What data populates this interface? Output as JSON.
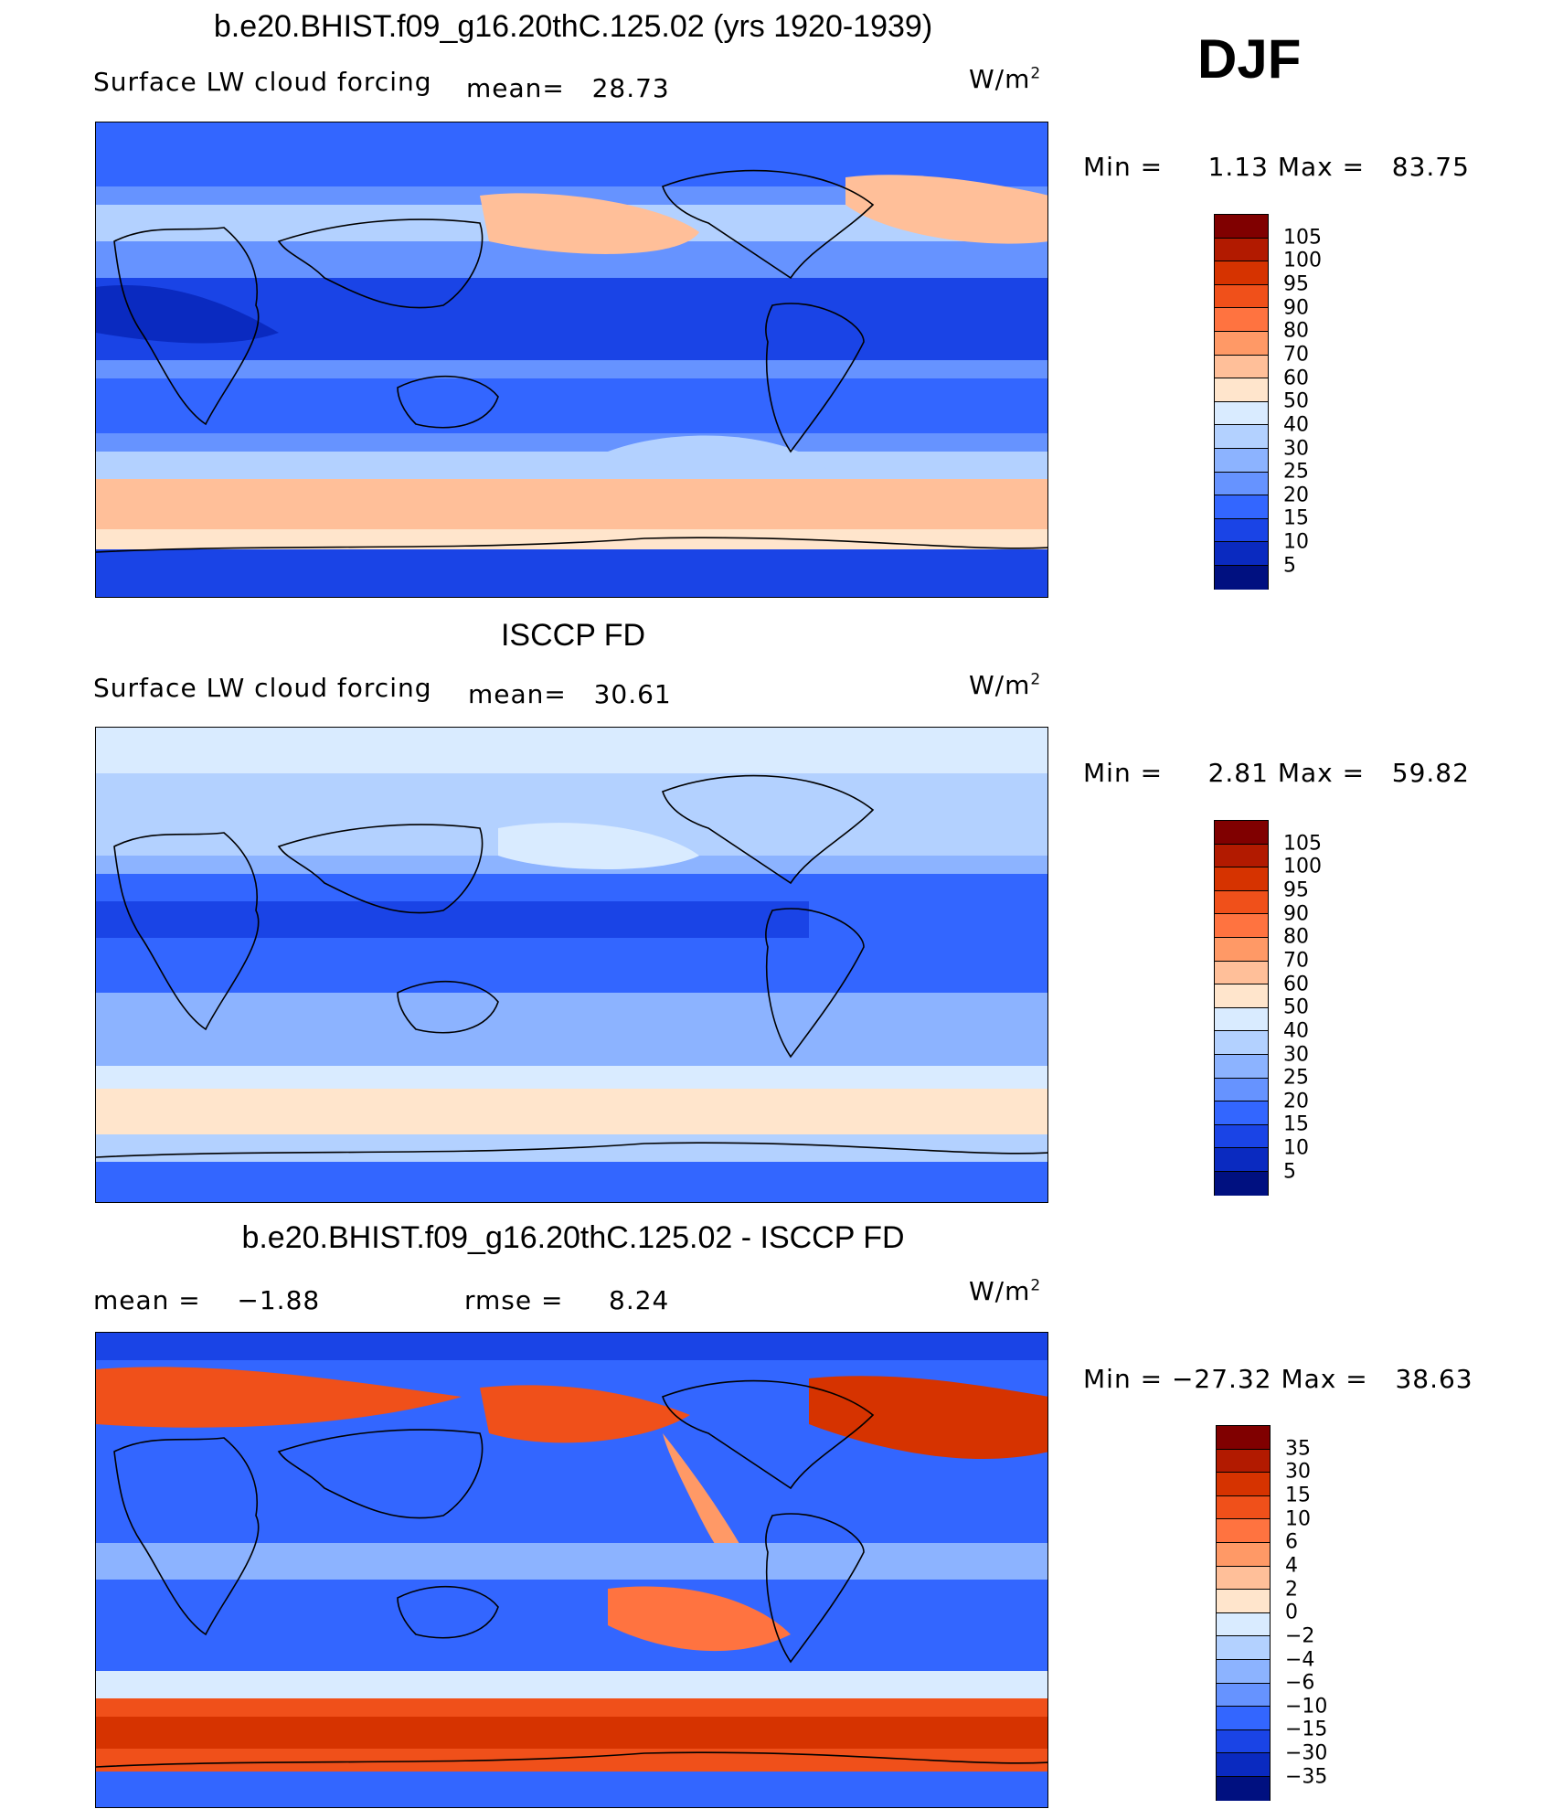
{
  "season": "DJF",
  "panels": [
    {
      "title": "b.e20.BHIST.f09_g16.20thC.125.02 (yrs 1920-1939)",
      "variable": "Surface LW cloud forcing",
      "mean_label": "mean=",
      "mean_value": "28.73",
      "units_base": "W/m",
      "units_exp": "2",
      "min_label": "Min =",
      "min_value": "1.13",
      "max_label": "Max =",
      "max_value": "83.75",
      "colorbar": {
        "levels": [
          "105",
          "100",
          "95",
          "90",
          "80",
          "70",
          "60",
          "50",
          "40",
          "30",
          "25",
          "20",
          "15",
          "10",
          "5"
        ],
        "colors": [
          "#800000",
          "#b21a00",
          "#d63300",
          "#f0501a",
          "#ff7340",
          "#ff9966",
          "#ffbf99",
          "#ffe5cc",
          "#d9ebff",
          "#b3d1ff",
          "#8cb3ff",
          "#6693ff",
          "#3366ff",
          "#1a44e6",
          "#0a2ac0",
          "#001080"
        ]
      }
    },
    {
      "title": "ISCCP FD",
      "variable": "Surface LW cloud forcing",
      "mean_label": "mean=",
      "mean_value": "30.61",
      "units_base": "W/m",
      "units_exp": "2",
      "min_label": "Min =",
      "min_value": "2.81",
      "max_label": "Max =",
      "max_value": "59.82",
      "colorbar": {
        "levels": [
          "105",
          "100",
          "95",
          "90",
          "80",
          "70",
          "60",
          "50",
          "40",
          "30",
          "25",
          "20",
          "15",
          "10",
          "5"
        ],
        "colors": [
          "#800000",
          "#b21a00",
          "#d63300",
          "#f0501a",
          "#ff7340",
          "#ff9966",
          "#ffbf99",
          "#ffe5cc",
          "#d9ebff",
          "#b3d1ff",
          "#8cb3ff",
          "#6693ff",
          "#3366ff",
          "#1a44e6",
          "#0a2ac0",
          "#001080"
        ]
      }
    },
    {
      "title": "b.e20.BHIST.f09_g16.20thC.125.02 - ISCCP FD",
      "mean_label": "mean =",
      "mean_value": "−1.88",
      "rmse_label": "rmse =",
      "rmse_value": "8.24",
      "units_base": "W/m",
      "units_exp": "2",
      "min_label": "Min =",
      "min_value": "−27.32",
      "max_label": "Max =",
      "max_value": "38.63",
      "colorbar": {
        "levels": [
          "35",
          "30",
          "15",
          "10",
          "6",
          "4",
          "2",
          "0",
          "−2",
          "−4",
          "−6",
          "−10",
          "−15",
          "−30",
          "−35"
        ],
        "colors": [
          "#800000",
          "#b21a00",
          "#d63300",
          "#f0501a",
          "#ff7340",
          "#ff9966",
          "#ffbf99",
          "#ffe5cc",
          "#d9ebff",
          "#b3d1ff",
          "#8cb3ff",
          "#6693ff",
          "#3366ff",
          "#1a44e6",
          "#0a2ac0",
          "#001080"
        ]
      }
    }
  ]
}
